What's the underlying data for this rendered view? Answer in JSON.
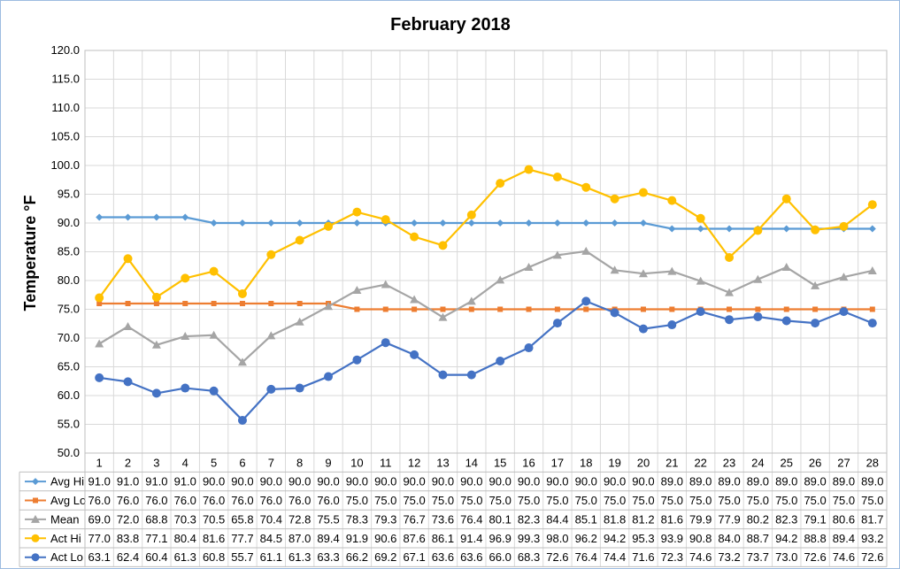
{
  "chart_data": {
    "type": "line",
    "title": "February 2018",
    "xlabel": "",
    "ylabel": "Temperature °F",
    "ylim": [
      50,
      120
    ],
    "ytick_step": 5,
    "grid": true,
    "legend": "data-table-left",
    "categories": [
      "1",
      "2",
      "3",
      "4",
      "5",
      "6",
      "7",
      "8",
      "9",
      "10",
      "11",
      "12",
      "13",
      "14",
      "15",
      "16",
      "17",
      "18",
      "19",
      "20",
      "21",
      "22",
      "23",
      "24",
      "25",
      "26",
      "27",
      "28"
    ],
    "series": [
      {
        "name": "Avg Hi",
        "color": "#5b9bd5",
        "marker": "diamond",
        "values": [
          91.0,
          91.0,
          91.0,
          91.0,
          90.0,
          90.0,
          90.0,
          90.0,
          90.0,
          90.0,
          90.0,
          90.0,
          90.0,
          90.0,
          90.0,
          90.0,
          90.0,
          90.0,
          90.0,
          90.0,
          89.0,
          89.0,
          89.0,
          89.0,
          89.0,
          89.0,
          89.0,
          89.0
        ]
      },
      {
        "name": "Avg Lo",
        "color": "#ed7d31",
        "marker": "square",
        "values": [
          76.0,
          76.0,
          76.0,
          76.0,
          76.0,
          76.0,
          76.0,
          76.0,
          76.0,
          75.0,
          75.0,
          75.0,
          75.0,
          75.0,
          75.0,
          75.0,
          75.0,
          75.0,
          75.0,
          75.0,
          75.0,
          75.0,
          75.0,
          75.0,
          75.0,
          75.0,
          75.0,
          75.0
        ]
      },
      {
        "name": "Mean",
        "color": "#a5a5a5",
        "marker": "triangle",
        "values": [
          69.0,
          72.0,
          68.8,
          70.3,
          70.5,
          65.8,
          70.4,
          72.8,
          75.5,
          78.3,
          79.3,
          76.7,
          73.6,
          76.4,
          80.1,
          82.3,
          84.4,
          85.1,
          81.8,
          81.2,
          81.6,
          79.9,
          77.9,
          80.2,
          82.3,
          79.1,
          80.6,
          81.7
        ]
      },
      {
        "name": "Act Hi",
        "color": "#ffc000",
        "marker": "circle",
        "values": [
          77.0,
          83.8,
          77.1,
          80.4,
          81.6,
          77.7,
          84.5,
          87.0,
          89.4,
          91.9,
          90.6,
          87.6,
          86.1,
          91.4,
          96.9,
          99.3,
          98.0,
          96.2,
          94.2,
          95.3,
          93.9,
          90.8,
          84.0,
          88.7,
          94.2,
          88.8,
          89.4,
          93.2
        ]
      },
      {
        "name": "Act Lo",
        "color": "#4472c4",
        "marker": "circle",
        "values": [
          63.1,
          62.4,
          60.4,
          61.3,
          60.8,
          55.7,
          61.1,
          61.3,
          63.3,
          66.2,
          69.2,
          67.1,
          63.6,
          63.6,
          66.0,
          68.3,
          72.6,
          76.4,
          74.4,
          71.6,
          72.3,
          74.6,
          73.2,
          73.7,
          73.0,
          72.6,
          74.6,
          72.6
        ]
      }
    ]
  }
}
